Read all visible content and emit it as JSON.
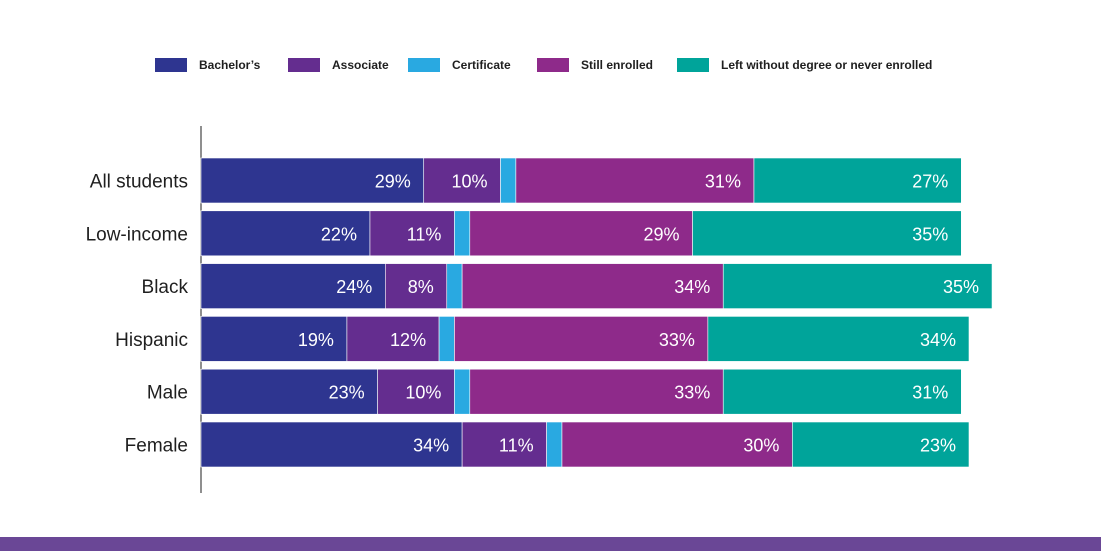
{
  "chart_data": {
    "type": "bar",
    "orientation": "horizontal",
    "stacked": true,
    "categories": [
      "All students",
      "Low-income",
      "Black",
      "Hispanic",
      "Male",
      "Female"
    ],
    "series": [
      {
        "name": "Bachelor’s",
        "color": "#2e3590",
        "values": [
          29,
          22,
          24,
          19,
          23,
          34
        ],
        "labels": [
          "29%",
          "22%",
          "24%",
          "19%",
          "23%",
          "34%"
        ]
      },
      {
        "name": "Associate",
        "color": "#642d8f",
        "values": [
          10,
          11,
          8,
          12,
          10,
          11
        ],
        "labels": [
          "10%",
          "11%",
          "8%",
          "12%",
          "10%",
          "11%"
        ]
      },
      {
        "name": "Certificate",
        "color": "#29a9e1",
        "values": [
          2,
          2,
          2,
          2,
          2,
          2
        ],
        "labels": [
          "",
          "",
          "",
          "",
          "",
          ""
        ]
      },
      {
        "name": "Still enrolled",
        "color": "#8e2a8a",
        "values": [
          31,
          29,
          34,
          33,
          33,
          30
        ],
        "labels": [
          "31%",
          "29%",
          "34%",
          "33%",
          "33%",
          "30%"
        ]
      },
      {
        "name": "Left without degree or never enrolled",
        "color": "#00a49a",
        "values": [
          27,
          35,
          35,
          34,
          31,
          23
        ],
        "labels": [
          "27%",
          "35%",
          "35%",
          "34%",
          "31%",
          "23%"
        ]
      }
    ],
    "xlim": [
      0,
      100
    ],
    "grid": false,
    "legend_position": "top"
  },
  "footer": {
    "band_color": "#6a4796"
  }
}
